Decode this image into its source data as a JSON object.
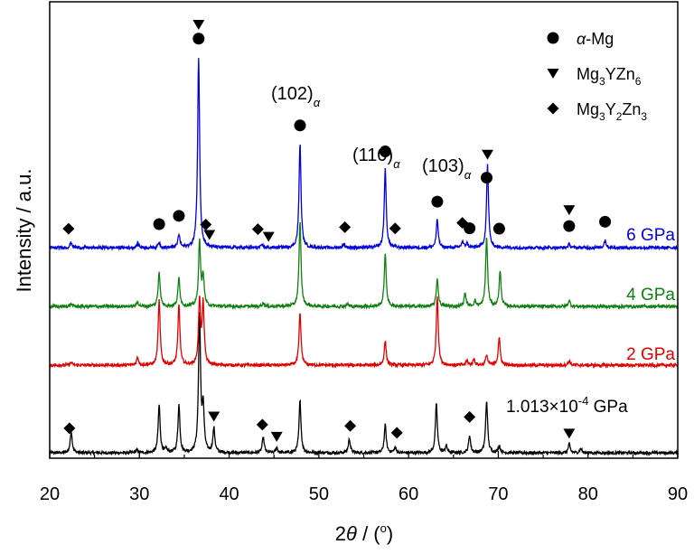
{
  "chart_data": {
    "type": "line",
    "xlabel_main": "2",
    "xlabel_theta": "θ",
    "xlabel_rest": " / (",
    "xlabel_deg": "o",
    "xlabel_close": ")",
    "ylabel": "Intensity / a.u.",
    "xlim": [
      20,
      90
    ],
    "x_ticks": [
      20,
      30,
      40,
      50,
      60,
      70,
      80,
      90
    ],
    "x_tick_labels": [
      "20",
      "30",
      "40",
      "50",
      "60",
      "70",
      "80",
      "90"
    ],
    "grid": false,
    "legend_position": "top-right",
    "legend": [
      {
        "marker": "circle",
        "label_parts": [
          {
            "t": "α",
            "i": true
          },
          {
            "t": "-Mg"
          }
        ]
      },
      {
        "marker": "triangle-down",
        "label_parts": [
          {
            "t": "Mg"
          },
          {
            "t": "3",
            "s": true
          },
          {
            "t": "YZn"
          },
          {
            "t": "6",
            "s": true
          }
        ]
      },
      {
        "marker": "diamond",
        "label_parts": [
          {
            "t": "Mg"
          },
          {
            "t": "3",
            "s": true
          },
          {
            "t": "Y"
          },
          {
            "t": "2",
            "s": true
          },
          {
            "t": "Zn"
          },
          {
            "t": "3",
            "s": true
          }
        ]
      }
    ],
    "annotations": [
      {
        "main": "(102)",
        "sub": "α"
      },
      {
        "main": "(110)",
        "sub": "α"
      },
      {
        "main": "(103)",
        "sub": "α"
      }
    ],
    "series": [
      {
        "name": "1.013×10-4 GPa",
        "label_main": "1.013×10",
        "label_sup": "-4",
        "label_end": " GPa",
        "color": "#000000",
        "peaks": [
          {
            "x": 22.4,
            "h": 0.25
          },
          {
            "x": 29.7,
            "h": 0.03
          },
          {
            "x": 32.2,
            "h": 0.55
          },
          {
            "x": 33.0,
            "h": 0.04
          },
          {
            "x": 34.4,
            "h": 0.55
          },
          {
            "x": 36.7,
            "h": 1.6
          },
          {
            "x": 37.1,
            "h": 0.5
          },
          {
            "x": 38.3,
            "h": 0.28
          },
          {
            "x": 43.8,
            "h": 0.18
          },
          {
            "x": 45.3,
            "h": 0.06
          },
          {
            "x": 47.9,
            "h": 0.6
          },
          {
            "x": 53.4,
            "h": 0.16
          },
          {
            "x": 57.4,
            "h": 0.32
          },
          {
            "x": 58.5,
            "h": 0.06
          },
          {
            "x": 63.1,
            "h": 0.56
          },
          {
            "x": 64.2,
            "h": 0.08
          },
          {
            "x": 66.8,
            "h": 0.2
          },
          {
            "x": 68.7,
            "h": 0.6
          },
          {
            "x": 70.1,
            "h": 0.08
          },
          {
            "x": 77.9,
            "h": 0.1
          },
          {
            "x": 79.2,
            "h": 0.05
          }
        ],
        "markers": [
          {
            "shape": "diamond",
            "x": 22.2
          },
          {
            "shape": "triangle-down",
            "x": 38.3
          },
          {
            "shape": "diamond",
            "x": 43.7
          },
          {
            "shape": "triangle-down",
            "x": 45.3
          },
          {
            "shape": "diamond",
            "x": 53.5
          },
          {
            "shape": "diamond",
            "x": 58.7
          },
          {
            "shape": "diamond",
            "x": 66.8
          },
          {
            "shape": "triangle-down",
            "x": 77.9
          }
        ]
      },
      {
        "name": "2 GPa",
        "label_main": "2 GPa",
        "color": "#e00000",
        "peaks": [
          {
            "x": 22.4,
            "h": 0.03
          },
          {
            "x": 29.8,
            "h": 0.09
          },
          {
            "x": 32.2,
            "h": 0.75
          },
          {
            "x": 34.4,
            "h": 0.7
          },
          {
            "x": 36.7,
            "h": 0.75
          },
          {
            "x": 37.1,
            "h": 0.7
          },
          {
            "x": 47.9,
            "h": 0.6
          },
          {
            "x": 57.4,
            "h": 0.28
          },
          {
            "x": 63.2,
            "h": 0.8
          },
          {
            "x": 66.5,
            "h": 0.05
          },
          {
            "x": 67.3,
            "h": 0.07
          },
          {
            "x": 68.7,
            "h": 0.12
          },
          {
            "x": 70.1,
            "h": 0.32
          },
          {
            "x": 77.9,
            "h": 0.05
          }
        ]
      },
      {
        "name": "4 GPa",
        "label_main": "4 GPa",
        "color": "#108010",
        "peaks": [
          {
            "x": 22.4,
            "h": 0.03
          },
          {
            "x": 29.8,
            "h": 0.05
          },
          {
            "x": 32.2,
            "h": 0.4
          },
          {
            "x": 34.4,
            "h": 0.33
          },
          {
            "x": 36.7,
            "h": 0.75
          },
          {
            "x": 37.1,
            "h": 0.35
          },
          {
            "x": 43.8,
            "h": 0.04
          },
          {
            "x": 47.9,
            "h": 0.98
          },
          {
            "x": 53.2,
            "h": 0.03
          },
          {
            "x": 57.4,
            "h": 0.6
          },
          {
            "x": 63.2,
            "h": 0.32
          },
          {
            "x": 66.3,
            "h": 0.15
          },
          {
            "x": 67.4,
            "h": 0.06
          },
          {
            "x": 68.7,
            "h": 0.8
          },
          {
            "x": 70.2,
            "h": 0.4
          },
          {
            "x": 77.9,
            "h": 0.07
          }
        ]
      },
      {
        "name": "6 GPa",
        "label_main": "6 GPa",
        "color": "#0000e0",
        "peaks": [
          {
            "x": 22.4,
            "h": 0.06
          },
          {
            "x": 29.8,
            "h": 0.05
          },
          {
            "x": 32.2,
            "h": 0.06
          },
          {
            "x": 34.4,
            "h": 0.15
          },
          {
            "x": 36.6,
            "h": 2.2
          },
          {
            "x": 43.7,
            "h": 0.03
          },
          {
            "x": 47.9,
            "h": 1.2
          },
          {
            "x": 52.8,
            "h": 0.04
          },
          {
            "x": 57.4,
            "h": 0.9
          },
          {
            "x": 63.2,
            "h": 0.32
          },
          {
            "x": 66.0,
            "h": 0.07
          },
          {
            "x": 66.5,
            "h": 0.05
          },
          {
            "x": 68.8,
            "h": 0.95
          },
          {
            "x": 77.9,
            "h": 0.04
          },
          {
            "x": 81.9,
            "h": 0.09
          }
        ],
        "markers": [
          {
            "shape": "diamond",
            "x": 22.1
          },
          {
            "shape": "circle",
            "x": 32.2
          },
          {
            "shape": "circle",
            "x": 34.4
          },
          {
            "shape": "circle",
            "x": 36.6
          },
          {
            "shape": "triangle-down",
            "x": 36.6
          },
          {
            "shape": "diamond",
            "x": 37.4
          },
          {
            "shape": "triangle-down",
            "x": 37.8
          },
          {
            "shape": "diamond",
            "x": 43.2
          },
          {
            "shape": "triangle-down",
            "x": 44.4
          },
          {
            "shape": "circle",
            "x": 47.9
          },
          {
            "shape": "diamond",
            "x": 52.9
          },
          {
            "shape": "circle",
            "x": 57.4
          },
          {
            "shape": "diamond",
            "x": 58.5
          },
          {
            "shape": "circle",
            "x": 63.2
          },
          {
            "shape": "diamond",
            "x": 66.0
          },
          {
            "shape": "circle",
            "x": 66.8
          },
          {
            "shape": "circle",
            "x": 68.7
          },
          {
            "shape": "triangle-down",
            "x": 68.8
          },
          {
            "shape": "circle",
            "x": 70.1
          },
          {
            "shape": "circle",
            "x": 77.9
          },
          {
            "shape": "triangle-down",
            "x": 77.9
          },
          {
            "shape": "circle",
            "x": 81.9
          }
        ]
      }
    ]
  }
}
